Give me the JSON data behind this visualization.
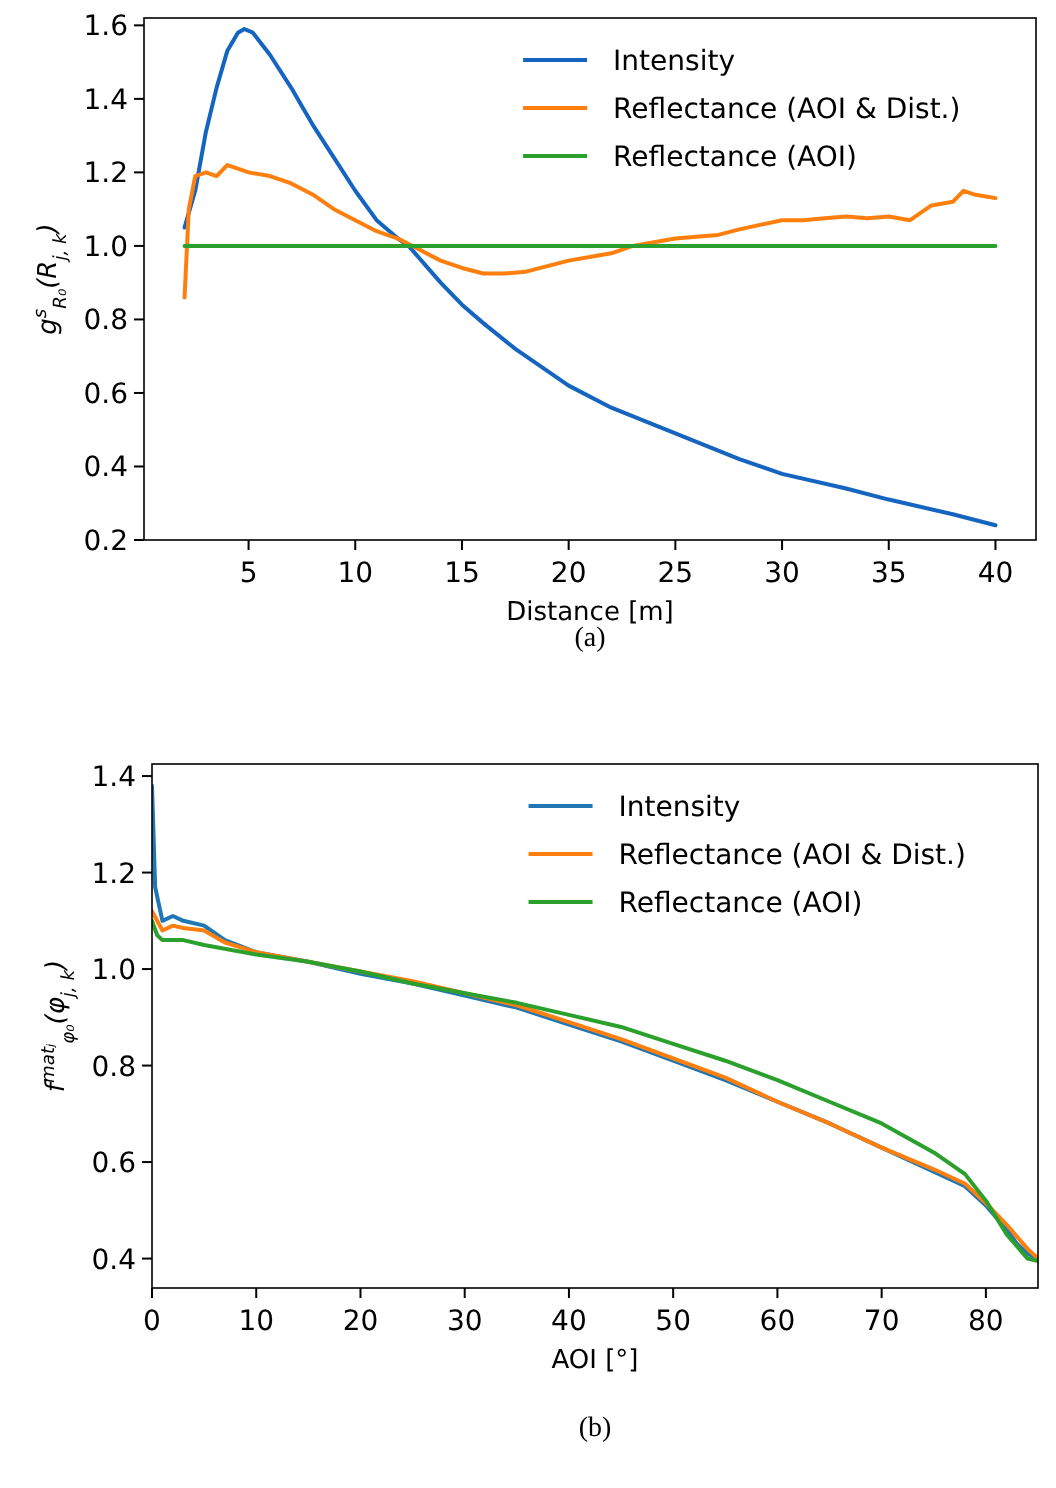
{
  "chart_data": [
    {
      "type": "line",
      "xlabel": "Distance [m]",
      "ylabel": "g$^{s}$$_{R₀}$(R$_{j, k}$)",
      "annotations": [
        "(a)"
      ],
      "xlim": [
        0.1,
        41.9
      ],
      "ylim": [
        0.2,
        1.62
      ],
      "xticks": [
        5,
        10,
        15,
        20,
        25,
        30,
        35,
        40
      ],
      "yticks": [
        0.2,
        0.4,
        0.6,
        0.8,
        {
          "value": 1,
          "label": "1.0"
        },
        1.2,
        1.4,
        1.6
      ],
      "legend": "top right",
      "grid": false,
      "series": [
        {
          "name": "Intensity",
          "color": "#1565c0",
          "x": [
            2,
            2.5,
            3,
            3.5,
            4,
            4.5,
            4.8,
            5.2,
            6,
            7,
            7.5,
            8,
            9,
            10,
            11,
            12,
            12.5,
            14,
            15,
            16,
            17.5,
            20,
            22,
            25,
            28,
            30,
            33,
            35,
            38,
            40
          ],
          "values": [
            1.05,
            1.15,
            1.31,
            1.43,
            1.53,
            1.58,
            1.59,
            1.58,
            1.52,
            1.43,
            1.38,
            1.33,
            1.24,
            1.15,
            1.07,
            1.02,
            1.0,
            0.9,
            0.84,
            0.79,
            0.72,
            0.62,
            0.56,
            0.49,
            0.42,
            0.38,
            0.34,
            0.31,
            0.27,
            0.24
          ]
        },
        {
          "name": "Reflectance (AOI & Dist.)",
          "color": "#ff7f0e",
          "x": [
            2,
            2.2,
            2.5,
            3,
            3.5,
            4,
            4.5,
            5,
            6,
            7,
            8,
            9,
            10,
            11,
            12,
            13,
            14,
            15,
            16,
            17,
            18,
            20,
            22,
            23,
            25,
            27,
            28,
            30,
            31,
            32,
            33,
            34,
            35,
            36,
            37,
            38,
            38.5,
            39,
            40
          ],
          "values": [
            0.86,
            1.1,
            1.19,
            1.2,
            1.19,
            1.22,
            1.21,
            1.2,
            1.19,
            1.17,
            1.14,
            1.1,
            1.07,
            1.04,
            1.02,
            0.99,
            0.96,
            0.94,
            0.925,
            0.925,
            0.93,
            0.96,
            0.98,
            1.0,
            1.02,
            1.03,
            1.045,
            1.07,
            1.07,
            1.075,
            1.08,
            1.075,
            1.08,
            1.07,
            1.11,
            1.12,
            1.15,
            1.14,
            1.13
          ]
        },
        {
          "name": "Reflectance (AOI)",
          "color": "#2ca02c",
          "x": [
            2,
            40
          ],
          "values": [
            1.0,
            1.0
          ]
        }
      ]
    },
    {
      "type": "line",
      "xlabel": "AOI [°]",
      "ylabel": "f$^{matⱼ}$$_{φ₀}$(φ$_{j, k}$)",
      "annotations": [
        "(b)"
      ],
      "xlim": [
        0,
        85
      ],
      "ylim": [
        0.339,
        1.425
      ],
      "xticks": [
        0,
        10,
        20,
        30,
        40,
        50,
        60,
        70,
        80
      ],
      "yticks": [
        0.4,
        0.6,
        0.8,
        {
          "value": 1,
          "label": "1.0"
        },
        1.2,
        1.4
      ],
      "legend": "top right",
      "grid": false,
      "series": [
        {
          "name": "Intensity",
          "color": "#1f77b4",
          "x": [
            0,
            0.3,
            1,
            2,
            3,
            5,
            7,
            10,
            15,
            20,
            25,
            30,
            35,
            40,
            45,
            50,
            55,
            60,
            65,
            70,
            75,
            78,
            80,
            82,
            83,
            84,
            85
          ],
          "values": [
            1.38,
            1.17,
            1.1,
            1.11,
            1.1,
            1.09,
            1.06,
            1.035,
            1.015,
            0.99,
            0.97,
            0.945,
            0.92,
            0.885,
            0.85,
            0.81,
            0.77,
            0.725,
            0.68,
            0.63,
            0.58,
            0.55,
            0.51,
            0.46,
            0.43,
            0.41,
            0.4
          ]
        },
        {
          "name": "Reflectance (AOI & Dist.)",
          "color": "#ff7f0e",
          "x": [
            0,
            1,
            2,
            3,
            5,
            7,
            10,
            15,
            20,
            25,
            30,
            35,
            40,
            45,
            50,
            55,
            60,
            65,
            70,
            75,
            78,
            80,
            82,
            84,
            85
          ],
          "values": [
            1.12,
            1.08,
            1.09,
            1.085,
            1.08,
            1.055,
            1.035,
            1.015,
            0.995,
            0.975,
            0.95,
            0.925,
            0.89,
            0.855,
            0.815,
            0.775,
            0.725,
            0.68,
            0.63,
            0.585,
            0.555,
            0.515,
            0.47,
            0.42,
            0.4
          ]
        },
        {
          "name": "Reflectance (AOI)",
          "color": "#2ca02c",
          "x": [
            0,
            0.5,
            1,
            3,
            5,
            10,
            15,
            20,
            25,
            30,
            35,
            40,
            45,
            50,
            55,
            60,
            65,
            70,
            75,
            78,
            80,
            82,
            84,
            85
          ],
          "values": [
            1.1,
            1.07,
            1.06,
            1.06,
            1.05,
            1.03,
            1.015,
            0.995,
            0.97,
            0.95,
            0.93,
            0.905,
            0.88,
            0.845,
            0.81,
            0.77,
            0.725,
            0.68,
            0.62,
            0.575,
            0.52,
            0.45,
            0.4,
            0.395
          ]
        }
      ]
    }
  ]
}
